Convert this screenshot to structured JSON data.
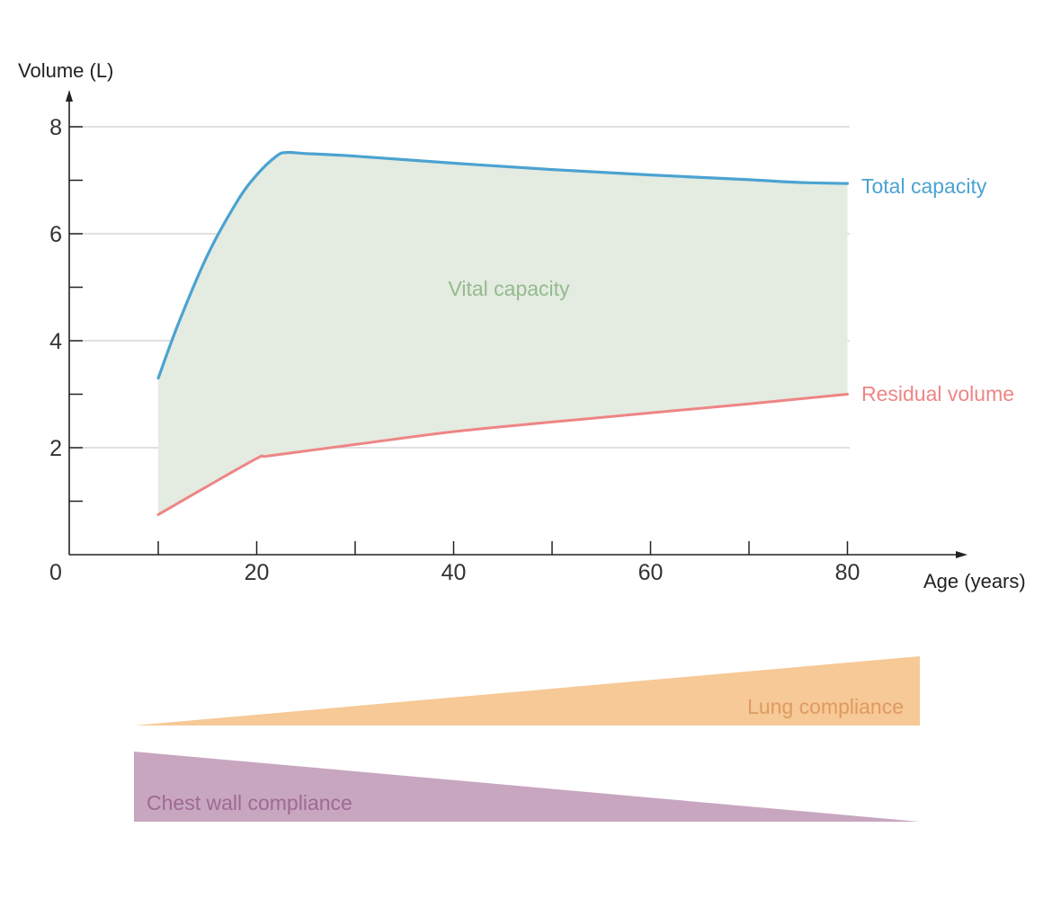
{
  "chart_data": {
    "type": "line",
    "ylabel": "Volume (L)",
    "xlabel": "Age (years)",
    "xlim": [
      0,
      90
    ],
    "ylim": [
      0,
      8
    ],
    "x_ticks": [
      0,
      20,
      40,
      60,
      80
    ],
    "x_minor_ticks": [
      10,
      30,
      50,
      70
    ],
    "y_ticks": [
      2,
      4,
      6,
      8
    ],
    "y_minor_ticks": [
      1,
      3,
      5,
      7
    ],
    "grid": "horizontal",
    "series": [
      {
        "name": "Total capacity",
        "color": "#4ba3d1",
        "x": [
          10,
          12,
          15,
          18,
          20,
          22,
          23,
          25,
          30,
          40,
          50,
          60,
          70,
          75,
          80
        ],
        "y": [
          3.3,
          4.3,
          5.6,
          6.6,
          7.1,
          7.45,
          7.52,
          7.5,
          7.45,
          7.32,
          7.2,
          7.1,
          7.01,
          6.96,
          6.94
        ]
      },
      {
        "name": "Residual volume",
        "color": "#ee8585",
        "x": [
          10,
          15,
          20,
          21,
          25,
          30,
          40,
          50,
          60,
          70,
          80
        ],
        "y": [
          0.75,
          1.28,
          1.8,
          1.84,
          1.94,
          2.06,
          2.3,
          2.48,
          2.65,
          2.82,
          3.0
        ]
      }
    ],
    "fill_between": {
      "label": "Vital capacity",
      "color": "#e4ebe1",
      "label_color": "#94bb8d"
    },
    "bands": [
      {
        "label": "Lung compliance",
        "direction": "increasing",
        "color": "#f6c996",
        "label_color": "#de9a62"
      },
      {
        "label": "Chest wall compliance",
        "direction": "decreasing",
        "color": "#c8a6c0",
        "label_color": "#9e6a94"
      }
    ]
  }
}
